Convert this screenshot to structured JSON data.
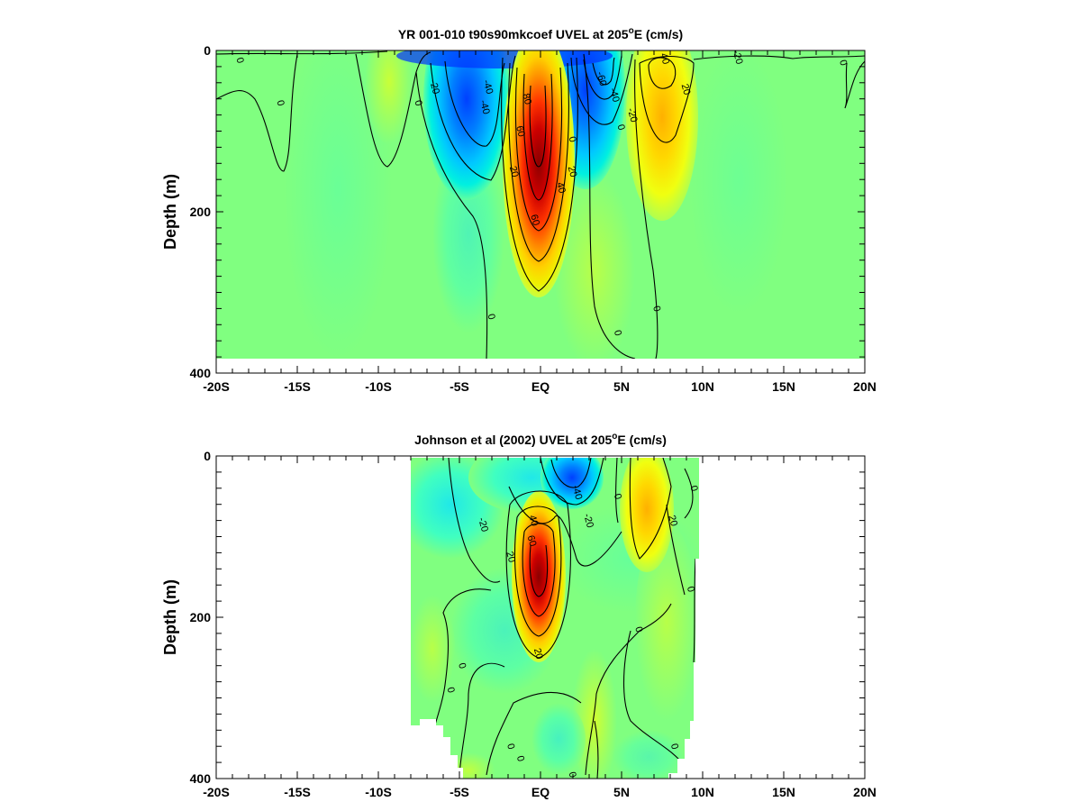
{
  "chart_data": [
    {
      "type": "heatmap",
      "title": "YR 001-010 t90s90mkcoef UVEL at 205",
      "title_sup": "o",
      "title_suffix": "E (cm/s)",
      "ylabel": "Depth (m)",
      "xticks": [
        "-20S",
        "-15S",
        "-10S",
        "-5S",
        "EQ",
        "5N",
        "10N",
        "15N",
        "20N"
      ],
      "xtick_values": [
        -20,
        -15,
        -10,
        -5,
        0,
        5,
        10,
        15,
        20
      ],
      "yticks": [
        "0",
        "200",
        "400"
      ],
      "ytick_values": [
        0,
        200,
        400
      ],
      "xlim": [
        -20,
        20
      ],
      "ylim": [
        0,
        400
      ],
      "y_inverted": true,
      "colormap": "jet",
      "contour_labels": [
        {
          "text": "0",
          "x": -18.5,
          "y": 12
        },
        {
          "text": "0",
          "x": -16,
          "y": 65
        },
        {
          "text": "0",
          "x": -7.5,
          "y": 65
        },
        {
          "text": "-20",
          "x": -6.5,
          "y": 45
        },
        {
          "text": "-40",
          "x": -3.2,
          "y": 45
        },
        {
          "text": "-40",
          "x": -3.4,
          "y": 70
        },
        {
          "text": "80",
          "x": -0.8,
          "y": 60
        },
        {
          "text": "60",
          "x": -1.2,
          "y": 100
        },
        {
          "text": "20",
          "x": -1.6,
          "y": 150
        },
        {
          "text": "20",
          "x": 2.0,
          "y": 150
        },
        {
          "text": "40",
          "x": 1.3,
          "y": 170
        },
        {
          "text": "60",
          "x": -0.3,
          "y": 210
        },
        {
          "text": "-60",
          "x": 3.8,
          "y": 35
        },
        {
          "text": "-40",
          "x": 4.6,
          "y": 55
        },
        {
          "text": "-20",
          "x": 5.7,
          "y": 80
        },
        {
          "text": "0",
          "x": 5.0,
          "y": 95
        },
        {
          "text": "0",
          "x": 2.0,
          "y": 110
        },
        {
          "text": "40",
          "x": 7.7,
          "y": 10
        },
        {
          "text": "20",
          "x": 9.0,
          "y": 48
        },
        {
          "text": "-20",
          "x": 12.2,
          "y": 8
        },
        {
          "text": "0",
          "x": 18.7,
          "y": 15
        },
        {
          "text": "0",
          "x": -3.0,
          "y": 330
        },
        {
          "text": "0",
          "x": 4.8,
          "y": 350
        },
        {
          "text": "0",
          "x": 7.2,
          "y": 320
        }
      ]
    },
    {
      "type": "heatmap",
      "title": "Johnson et al (2002) UVEL at 205",
      "title_sup": "o",
      "title_suffix": "E (cm/s)",
      "ylabel": "Depth (m)",
      "xticks": [
        "-20S",
        "-15S",
        "-10S",
        "-5S",
        "EQ",
        "5N",
        "10N",
        "15N",
        "20N"
      ],
      "xtick_values": [
        -20,
        -15,
        -10,
        -5,
        0,
        5,
        10,
        15,
        20
      ],
      "yticks": [
        "0",
        "200",
        "400"
      ],
      "ytick_values": [
        0,
        200,
        400
      ],
      "xlim": [
        -20,
        20
      ],
      "ylim": [
        0,
        400
      ],
      "y_inverted": true,
      "data_longitude_range": [
        -8,
        10
      ],
      "colormap": "jet",
      "contour_labels": [
        {
          "text": "-40",
          "x": 2.3,
          "y": 45
        },
        {
          "text": "-20",
          "x": 3.0,
          "y": 80
        },
        {
          "text": "0",
          "x": 4.8,
          "y": 50
        },
        {
          "text": "-20",
          "x": -3.5,
          "y": 85
        },
        {
          "text": "40",
          "x": -0.4,
          "y": 80
        },
        {
          "text": "60",
          "x": -0.5,
          "y": 105
        },
        {
          "text": "20",
          "x": -1.8,
          "y": 125
        },
        {
          "text": "20",
          "x": 8.2,
          "y": 80
        },
        {
          "text": "0",
          "x": 9.5,
          "y": 40
        },
        {
          "text": "0",
          "x": 9.3,
          "y": 165
        },
        {
          "text": "0",
          "x": 6.1,
          "y": 215
        },
        {
          "text": "20",
          "x": -0.1,
          "y": 245
        },
        {
          "text": "0",
          "x": -4.8,
          "y": 260
        },
        {
          "text": "0",
          "x": -5.5,
          "y": 290
        },
        {
          "text": "0",
          "x": -1.8,
          "y": 360
        },
        {
          "text": "0",
          "x": -1.2,
          "y": 375
        },
        {
          "text": "0",
          "x": 2.0,
          "y": 395
        },
        {
          "text": "0",
          "x": 8.3,
          "y": 360
        }
      ]
    }
  ]
}
